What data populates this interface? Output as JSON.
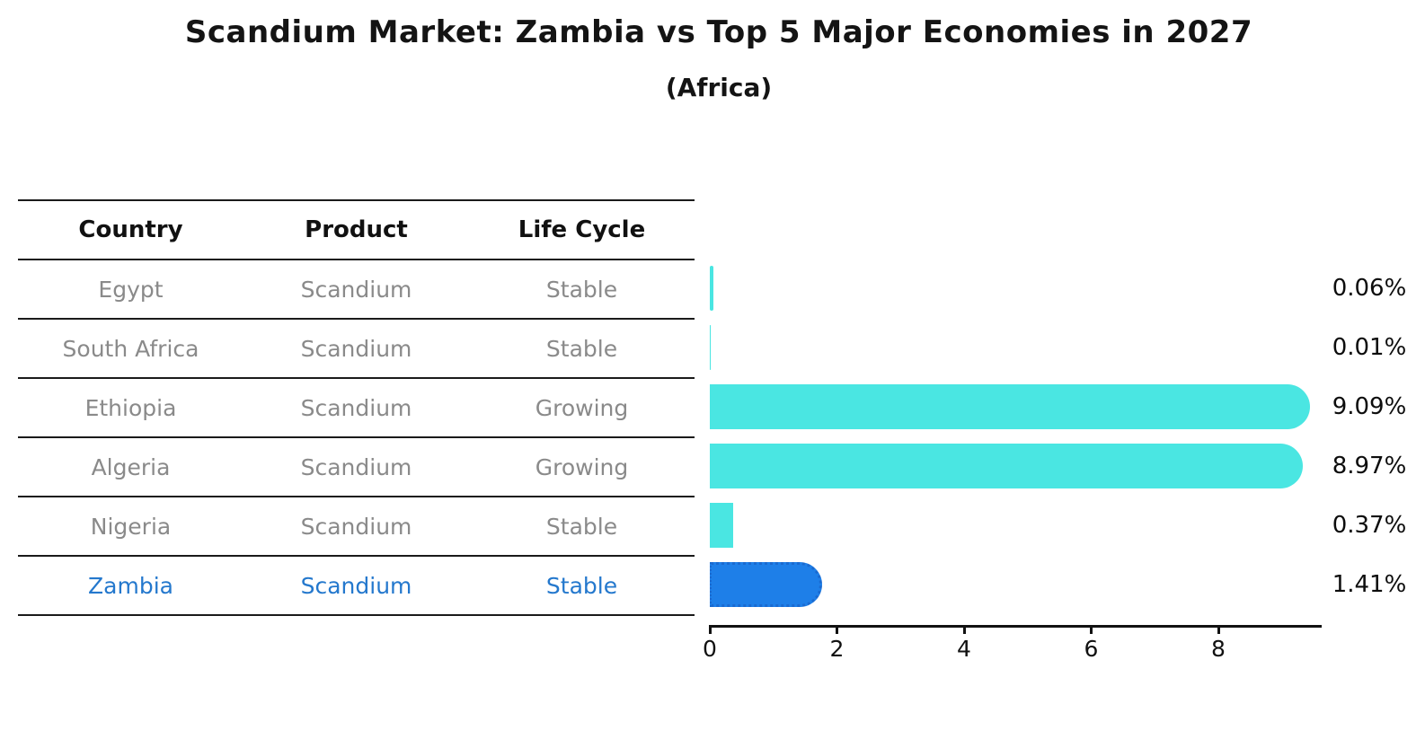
{
  "title": "Scandium Market: Zambia vs Top 5 Major Economies in 2027",
  "subtitle": "(Africa)",
  "table": {
    "headers": [
      "Country",
      "Product",
      "Life Cycle"
    ],
    "rows": [
      {
        "country": "Egypt",
        "product": "Scandium",
        "life_cycle": "Stable",
        "highlight": false
      },
      {
        "country": "South Africa",
        "product": "Scandium",
        "life_cycle": "Stable",
        "highlight": false
      },
      {
        "country": "Ethiopia",
        "product": "Scandium",
        "life_cycle": "Growing",
        "highlight": false
      },
      {
        "country": "Algeria",
        "product": "Scandium",
        "life_cycle": "Growing",
        "highlight": false
      },
      {
        "country": "Nigeria",
        "product": "Scandium",
        "life_cycle": "Stable",
        "highlight": false
      },
      {
        "country": "Zambia",
        "product": "Scandium",
        "life_cycle": "Stable",
        "highlight": true
      }
    ]
  },
  "chart_data": {
    "type": "bar",
    "orientation": "horizontal",
    "title": "Scandium Market: Zambia vs Top 5 Major Economies in 2027",
    "subtitle": "(Africa)",
    "categories": [
      "Egypt",
      "South Africa",
      "Ethiopia",
      "Algeria",
      "Nigeria",
      "Zambia"
    ],
    "values": [
      0.06,
      0.01,
      9.09,
      8.97,
      0.37,
      1.41
    ],
    "value_labels": [
      "0.06%",
      "0.01%",
      "9.09%",
      "8.97%",
      "0.37%",
      "1.41%"
    ],
    "highlight_index": 5,
    "xlim": [
      0,
      9.6
    ],
    "xticks": [
      "0",
      "2",
      "4",
      "6",
      "8"
    ],
    "xtick_values": [
      0,
      2,
      4,
      6,
      8
    ],
    "grid": false,
    "legend": false,
    "bar_color": "#4ae6e2",
    "highlight_bar_color": "#1e7fe8",
    "highlight_text_color": "#2478cd",
    "row_text_color": "#8a8a8a"
  }
}
